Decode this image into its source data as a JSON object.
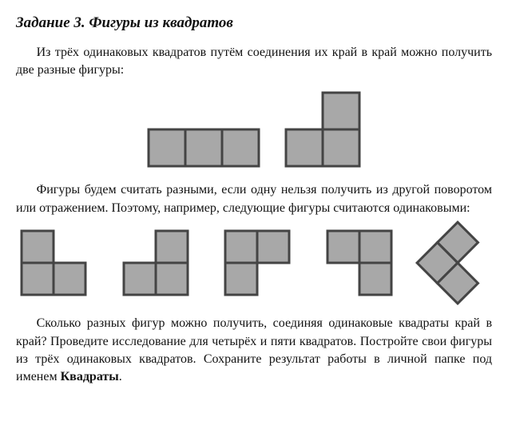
{
  "heading": "Задание 3. Фигуры из квадратов",
  "para1": "Из трёх одинаковых квадратов путём соединения их край в край можно получить две разные фигуры:",
  "para2": "Фигуры будем считать разными, если одну нельзя получить из другой поворотом или отражением. Поэтому, например, следующие фигуры считаются одинаковыми:",
  "para3_part1": "Сколько разных фигур можно получить, соединяя одинаковые квадраты край в край? Проведите исследование для четырёх и пяти квадратов. Постройте свои фигуры из трёх одинаковых квадратов. Сохраните результат работы в личной папке под именем ",
  "para3_bold": "Квадраты",
  "para3_part2": ".",
  "style": {
    "cell_fill": "#a8a8a8",
    "cell_stroke": "#444444",
    "stroke_width": 3,
    "big_cell": 46,
    "small_cell": 40,
    "tiny_cell": 36
  },
  "fig_top": [
    {
      "cells": [
        [
          0,
          0
        ],
        [
          1,
          0
        ],
        [
          2,
          0
        ]
      ],
      "size": 46,
      "cols": 3,
      "rows": 1
    },
    {
      "cells": [
        [
          1,
          0
        ],
        [
          0,
          1
        ],
        [
          1,
          1
        ]
      ],
      "size": 46,
      "cols": 2,
      "rows": 2
    }
  ],
  "fig_bottom": [
    {
      "cells": [
        [
          0,
          0
        ],
        [
          0,
          1
        ],
        [
          1,
          1
        ]
      ],
      "size": 40,
      "cols": 2,
      "rows": 2,
      "rot": 0
    },
    {
      "cells": [
        [
          1,
          0
        ],
        [
          0,
          1
        ],
        [
          1,
          1
        ]
      ],
      "size": 40,
      "cols": 2,
      "rows": 2,
      "rot": 0
    },
    {
      "cells": [
        [
          0,
          0
        ],
        [
          1,
          0
        ],
        [
          0,
          1
        ]
      ],
      "size": 40,
      "cols": 2,
      "rows": 2,
      "rot": 0
    },
    {
      "cells": [
        [
          0,
          0
        ],
        [
          1,
          0
        ],
        [
          1,
          1
        ]
      ],
      "size": 40,
      "cols": 2,
      "rows": 2,
      "rot": 0
    },
    {
      "cells": [
        [
          0,
          0
        ],
        [
          0,
          1
        ],
        [
          1,
          1
        ]
      ],
      "size": 36,
      "cols": 2,
      "rows": 2,
      "rot": 45
    }
  ]
}
